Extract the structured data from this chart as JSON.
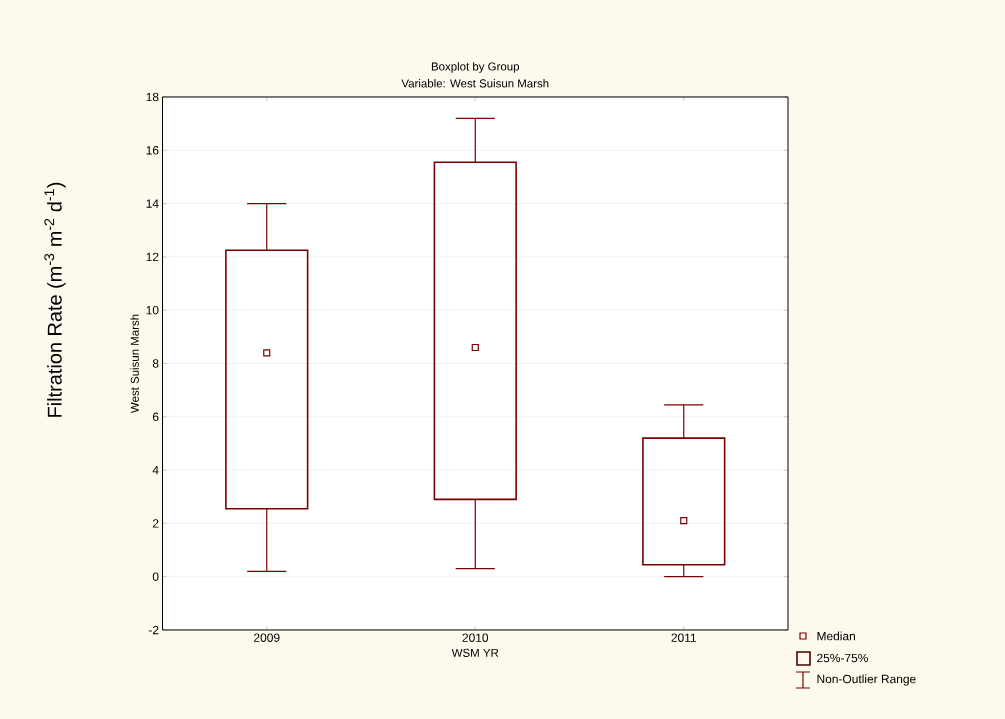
{
  "chart_data": {
    "type": "box",
    "title": "Boxplot by Group",
    "subtitle": "Variable: West Suisun Marsh",
    "xlabel": "WSM YR",
    "ylabel": "West Suisun Marsh",
    "annotations": [
      "Filtration Rate (m$^{-3}$ m$^{-2}$ d$^{-1}$)",
      "Median",
      "25%-75%",
      "Non-Outlier Range"
    ],
    "categories": [
      "2009",
      "2010",
      "2011"
    ],
    "series": [
      {
        "color": "#7b0000",
        "boxes": [
          {
            "low": 0.2,
            "q1": 2.55,
            "median": 8.4,
            "q3": 12.25,
            "high": 14.0
          },
          {
            "low": 0.3,
            "q1": 2.9,
            "median": 8.6,
            "q3": 15.55,
            "high": 17.2
          },
          {
            "low": 0.0,
            "q1": 0.45,
            "median": 2.1,
            "q3": 5.2,
            "high": 6.45
          }
        ]
      }
    ],
    "ylim": [
      -2,
      18
    ],
    "yticks": [
      -2,
      0,
      2,
      4,
      6,
      8,
      10,
      12,
      14,
      16,
      18
    ],
    "grid": "y",
    "marker": "square"
  }
}
